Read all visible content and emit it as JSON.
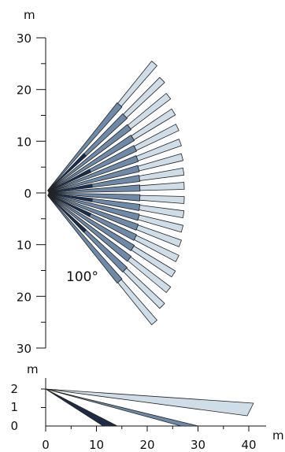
{
  "top_view": {
    "unit_label": "m",
    "y_tick_labels": [
      "30",
      "20",
      "10",
      "0",
      "10",
      "20",
      "30"
    ],
    "angle_label": "100°"
  },
  "side_view": {
    "y_unit_label": "m",
    "x_unit_label": "m",
    "y_tick_labels": [
      "2",
      "1",
      "0"
    ],
    "x_tick_labels": [
      "0",
      "10",
      "20",
      "30",
      "40"
    ]
  },
  "colors": {
    "near_zone": "#1e2b44",
    "mid_zone": "#6e8aa8",
    "far_zone": "#cfdde9",
    "outline": "#222222"
  }
}
